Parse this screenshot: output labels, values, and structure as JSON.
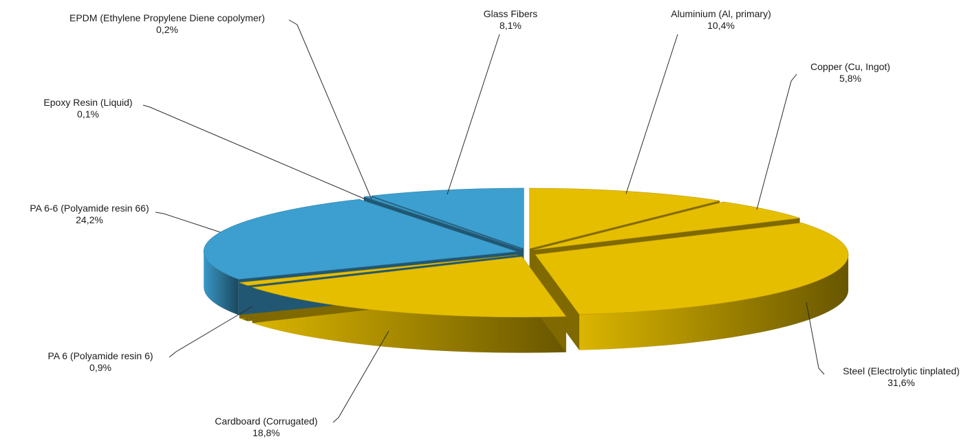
{
  "chart_data": {
    "type": "pie",
    "style": "3d-exploded",
    "title": "",
    "slices": [
      {
        "name": "Aluminium (Al, primary)",
        "label": "10,4%",
        "value": 10.4,
        "color": "#E6BE00"
      },
      {
        "name": "Copper (Cu, Ingot)",
        "label": "5,8%",
        "value": 5.8,
        "color": "#E6BE00"
      },
      {
        "name": "Steel (Electrolytic tinplated)",
        "label": "31,6%",
        "value": 31.6,
        "color": "#E6BE00"
      },
      {
        "name": "Cardboard (Corrugated)",
        "label": "18,8%",
        "value": 18.8,
        "color": "#E6BE00"
      },
      {
        "name": "PA 6 (Polyamide resin 6)",
        "label": "0,9%",
        "value": 0.9,
        "color": "#E6BE00"
      },
      {
        "name": "PA 6-6 (Polyamide resin 66)",
        "label": "24,2%",
        "value": 24.2,
        "color": "#3C9FD0"
      },
      {
        "name": "Epoxy Resin (Liquid)",
        "label": "0,1%",
        "value": 0.1,
        "color": "#3C9FD0"
      },
      {
        "name": "EPDM (Ethylene Propylene Diene copolymer)",
        "label": "0,2%",
        "value": 0.2,
        "color": "#3C9FD0"
      },
      {
        "name": "Glass Fibers",
        "label": "8,1%",
        "value": 8.1,
        "color": "#3C9FD0"
      }
    ]
  }
}
